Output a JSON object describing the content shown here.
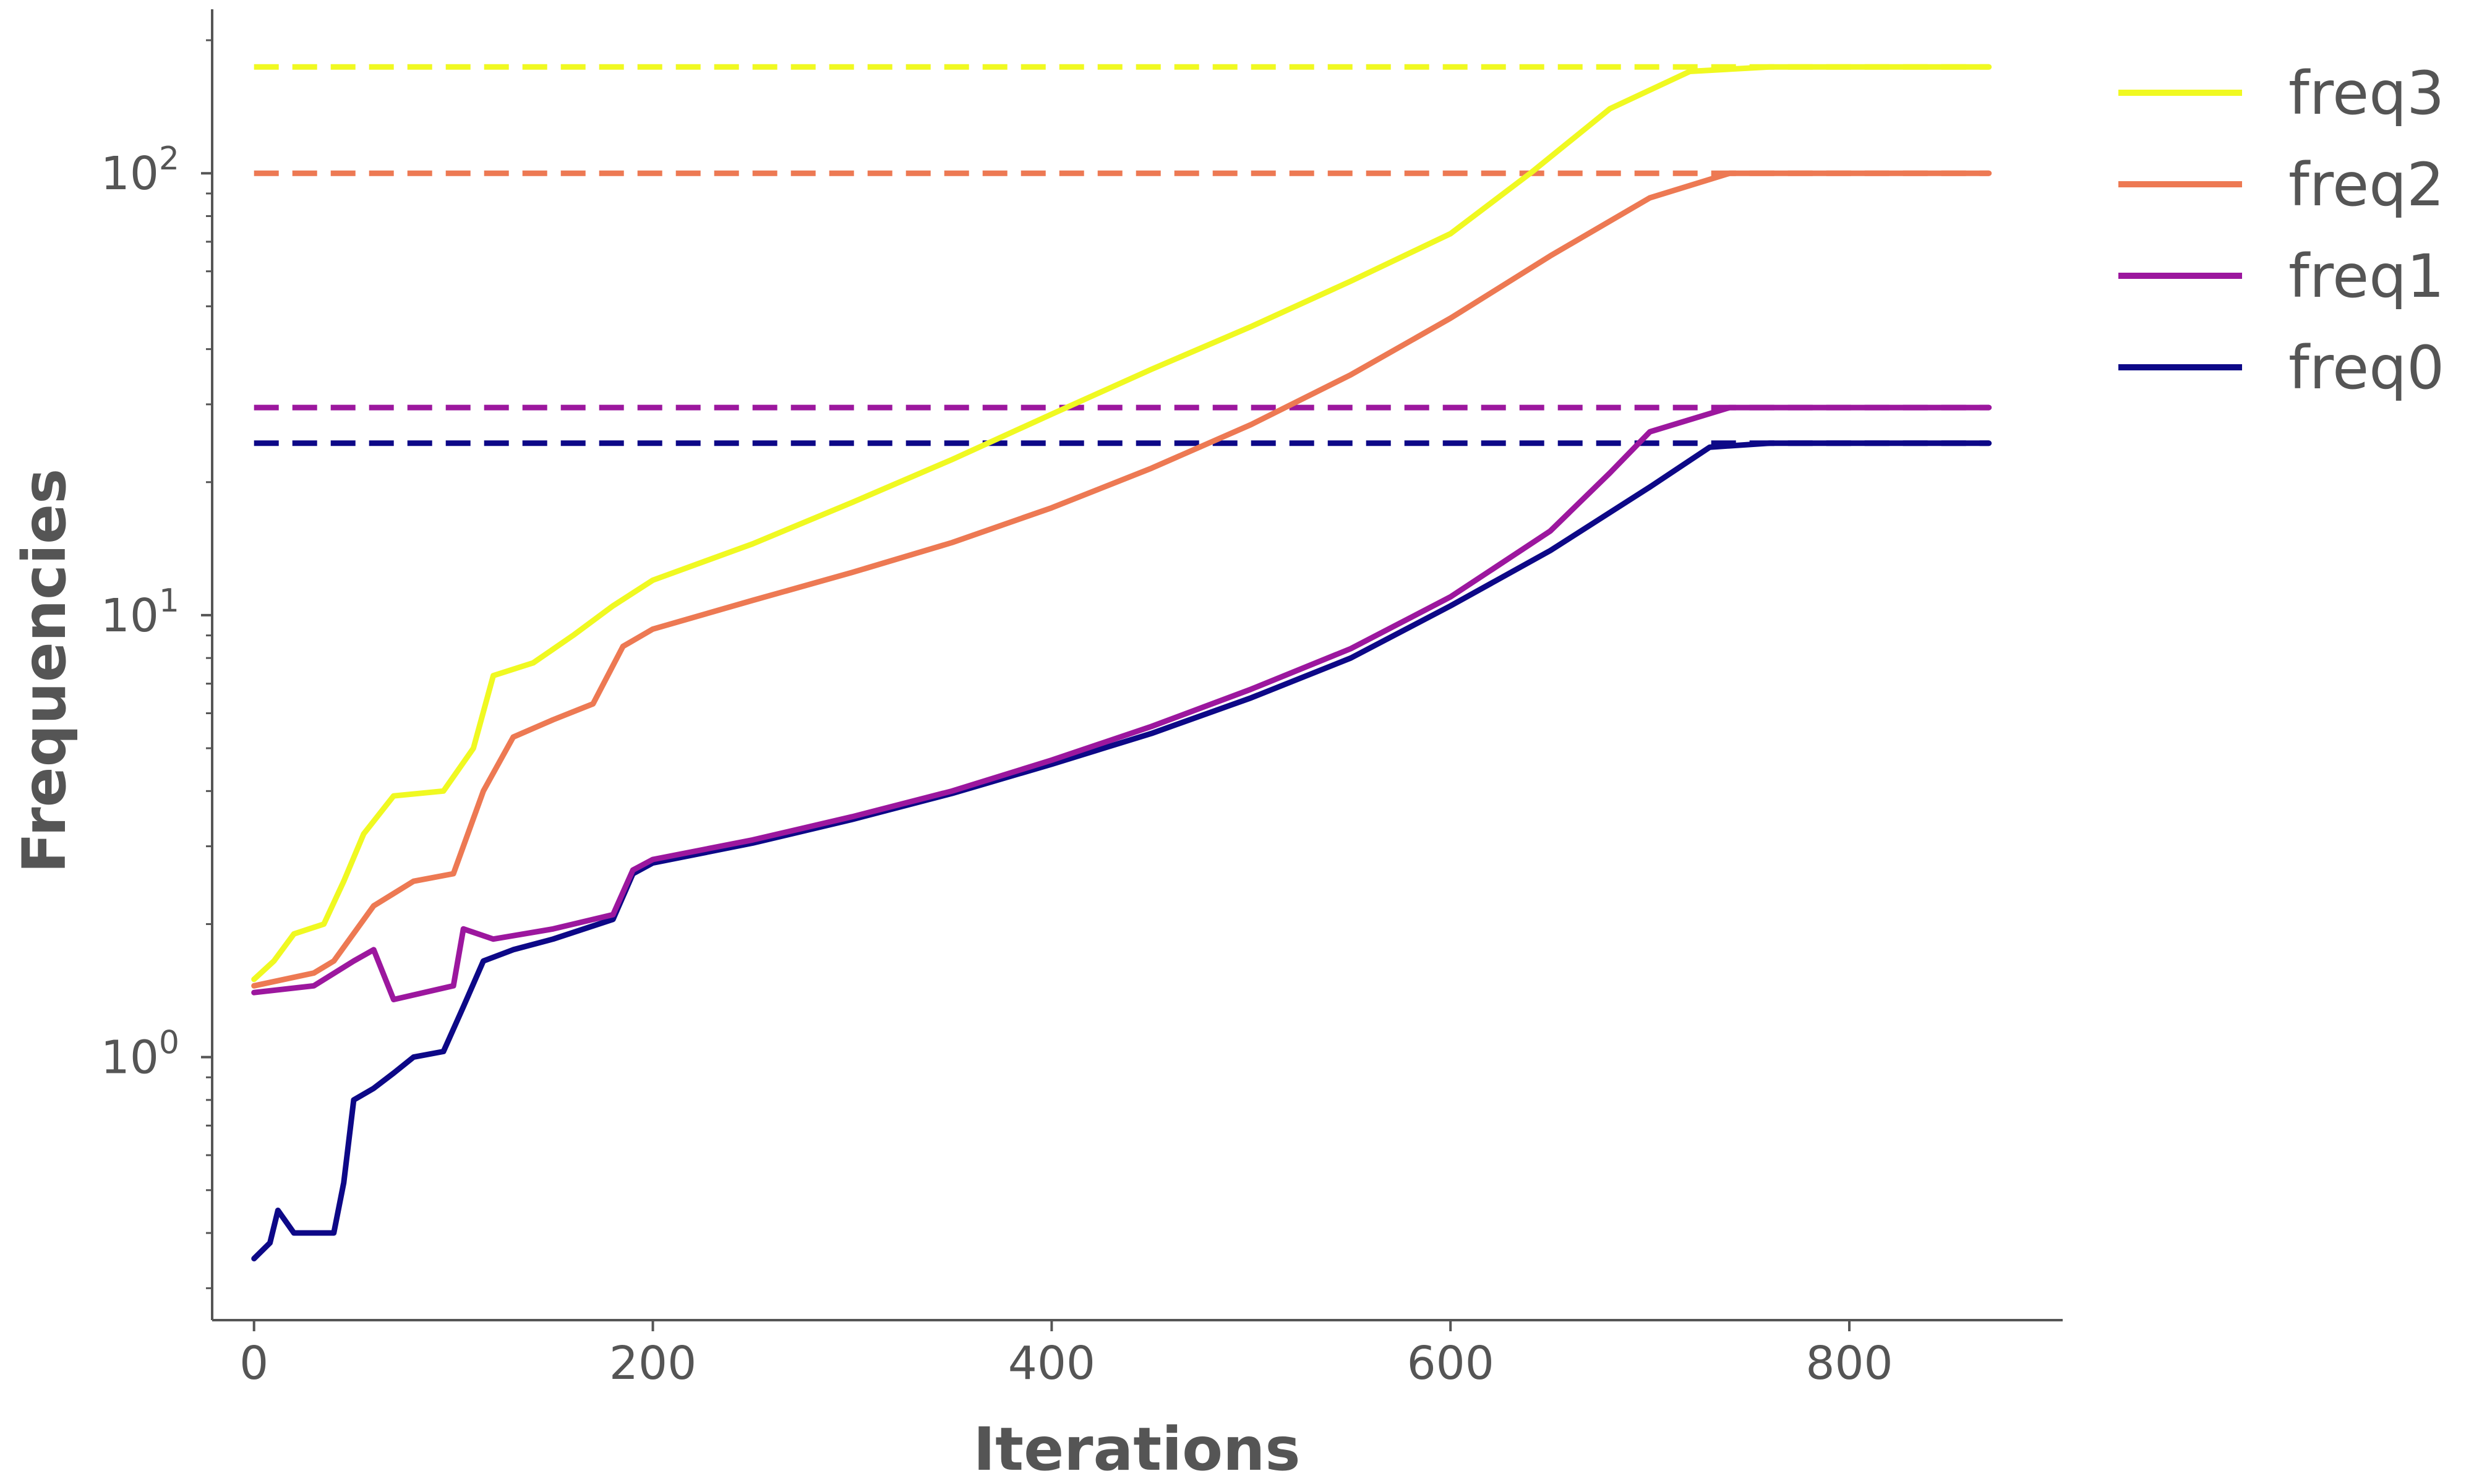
{
  "chart_data": {
    "type": "line",
    "title": "",
    "xlabel": "Iterations",
    "ylabel": "Frequencies",
    "yscale": "log",
    "xlim": [
      -21,
      907
    ],
    "ylim": [
      0.254,
      235
    ],
    "x_ticks": [
      {
        "value": 0,
        "label": "0"
      },
      {
        "value": 200,
        "label": "200"
      },
      {
        "value": 400,
        "label": "400"
      },
      {
        "value": 600,
        "label": "600"
      },
      {
        "value": 800,
        "label": "800"
      }
    ],
    "y_ticks": [
      {
        "value": 1,
        "base": "10",
        "exp": "0"
      },
      {
        "value": 10,
        "base": "10",
        "exp": "1"
      },
      {
        "value": 100,
        "base": "10",
        "exp": "2"
      }
    ],
    "grid": false,
    "legend_position": "top-right (outside plot)",
    "series": [
      {
        "name": "freq3",
        "color": "#f0f921",
        "target": 174,
        "points": [
          [
            0,
            1.5
          ],
          [
            10,
            1.65
          ],
          [
            20,
            1.9
          ],
          [
            35,
            2.0
          ],
          [
            45,
            2.5
          ],
          [
            55,
            3.2
          ],
          [
            70,
            3.9
          ],
          [
            95,
            4.0
          ],
          [
            110,
            5.0
          ],
          [
            120,
            7.3
          ],
          [
            140,
            7.8
          ],
          [
            160,
            9.0
          ],
          [
            180,
            10.5
          ],
          [
            200,
            12.0
          ],
          [
            250,
            14.5
          ],
          [
            300,
            18.0
          ],
          [
            350,
            22.5
          ],
          [
            400,
            28.5
          ],
          [
            450,
            36.0
          ],
          [
            500,
            45.0
          ],
          [
            550,
            57.0
          ],
          [
            600,
            73.0
          ],
          [
            640,
            100.0
          ],
          [
            680,
            140.0
          ],
          [
            720,
            170.0
          ],
          [
            760,
            174.0
          ],
          [
            870,
            174.0
          ]
        ]
      },
      {
        "name": "freq2",
        "color": "#ed7953",
        "target": 100,
        "points": [
          [
            0,
            1.45
          ],
          [
            30,
            1.55
          ],
          [
            40,
            1.65
          ],
          [
            60,
            2.2
          ],
          [
            80,
            2.5
          ],
          [
            100,
            2.6
          ],
          [
            115,
            4.0
          ],
          [
            130,
            5.3
          ],
          [
            150,
            5.8
          ],
          [
            170,
            6.3
          ],
          [
            185,
            8.5
          ],
          [
            200,
            9.3
          ],
          [
            250,
            10.8
          ],
          [
            300,
            12.5
          ],
          [
            350,
            14.6
          ],
          [
            400,
            17.5
          ],
          [
            450,
            21.5
          ],
          [
            500,
            27.0
          ],
          [
            550,
            35.0
          ],
          [
            600,
            47.0
          ],
          [
            650,
            65.0
          ],
          [
            700,
            88.0
          ],
          [
            740,
            100.0
          ],
          [
            870,
            100.0
          ]
        ]
      },
      {
        "name": "freq1",
        "color": "#9c179e",
        "target": 29.5,
        "points": [
          [
            0,
            1.4
          ],
          [
            30,
            1.45
          ],
          [
            50,
            1.65
          ],
          [
            60,
            1.75
          ],
          [
            70,
            1.35
          ],
          [
            100,
            1.45
          ],
          [
            105,
            1.95
          ],
          [
            120,
            1.85
          ],
          [
            150,
            1.95
          ],
          [
            180,
            2.1
          ],
          [
            190,
            2.65
          ],
          [
            200,
            2.8
          ],
          [
            250,
            3.1
          ],
          [
            300,
            3.5
          ],
          [
            350,
            4.0
          ],
          [
            400,
            4.7
          ],
          [
            450,
            5.6
          ],
          [
            500,
            6.8
          ],
          [
            550,
            8.4
          ],
          [
            600,
            11.0
          ],
          [
            650,
            15.5
          ],
          [
            680,
            21.0
          ],
          [
            700,
            26.0
          ],
          [
            740,
            29.5
          ],
          [
            870,
            29.5
          ]
        ]
      },
      {
        "name": "freq0",
        "color": "#0d0887",
        "target": 24.5,
        "points": [
          [
            0,
            0.35
          ],
          [
            8,
            0.38
          ],
          [
            12,
            0.45
          ],
          [
            20,
            0.4
          ],
          [
            40,
            0.4
          ],
          [
            45,
            0.52
          ],
          [
            50,
            0.8
          ],
          [
            60,
            0.85
          ],
          [
            70,
            0.92
          ],
          [
            80,
            1.0
          ],
          [
            95,
            1.03
          ],
          [
            105,
            1.3
          ],
          [
            115,
            1.65
          ],
          [
            130,
            1.75
          ],
          [
            150,
            1.85
          ],
          [
            180,
            2.05
          ],
          [
            190,
            2.6
          ],
          [
            200,
            2.75
          ],
          [
            250,
            3.05
          ],
          [
            300,
            3.45
          ],
          [
            350,
            3.95
          ],
          [
            400,
            4.6
          ],
          [
            450,
            5.4
          ],
          [
            500,
            6.5
          ],
          [
            550,
            8.0
          ],
          [
            600,
            10.5
          ],
          [
            650,
            14.0
          ],
          [
            700,
            19.5
          ],
          [
            730,
            24.0
          ],
          [
            760,
            24.5
          ],
          [
            870,
            24.5
          ]
        ]
      }
    ]
  }
}
